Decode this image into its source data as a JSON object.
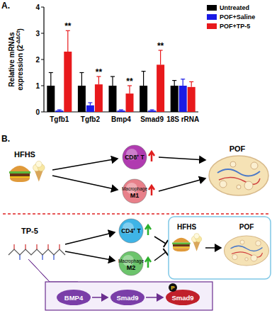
{
  "labels": {
    "a": "A.",
    "b": "B."
  },
  "chart_data": {
    "type": "bar",
    "categories": [
      "Tgfb1",
      "Tgfb2",
      "Bmp4",
      "Smad9",
      "18S rRNA"
    ],
    "series": [
      {
        "name": "Untreated",
        "color": "#000000",
        "values": [
          1.0,
          1.0,
          1.0,
          1.0,
          1.0
        ],
        "errors": [
          0.5,
          0.5,
          0.35,
          0.55,
          0.2
        ]
      },
      {
        "name": "POF+Saline",
        "color": "#1a1ae6",
        "values": [
          0.05,
          0.25,
          0.05,
          0.05,
          1.0
        ],
        "errors": [
          0.03,
          0.1,
          0.03,
          0.03,
          0.25
        ]
      },
      {
        "name": "POF+TP-5",
        "color": "#e8191c",
        "values": [
          2.3,
          1.05,
          0.7,
          1.8,
          0.95
        ],
        "errors": [
          0.8,
          0.3,
          0.3,
          0.55,
          0.2
        ]
      }
    ],
    "ylabel": {
      "lines": [
        "Relative mRNAs",
        "expression (2"
      ],
      "superscript": "-ΔΔCt",
      "suffix": ")"
    },
    "ylim": [
      0,
      4
    ],
    "yticks": [
      0,
      1,
      2,
      3,
      4
    ],
    "legend": "upper right",
    "annotations": [
      {
        "text": "**",
        "category": "Tgfb1",
        "series": "POF+TP-5"
      },
      {
        "text": "**",
        "category": "Tgfb2",
        "series": "POF+TP-5"
      },
      {
        "text": "**",
        "category": "Bmp4",
        "series": "POF+TP-5"
      },
      {
        "text": "**",
        "category": "Smad9",
        "series": "POF+TP-5"
      }
    ]
  },
  "diagram": {
    "upper": {
      "input": "HFHS",
      "cells": [
        {
          "label": "CD8⁺ T",
          "color": "#b03bb0"
        },
        {
          "label": "Macrophage",
          "sub": "M1",
          "color": "#e8808a"
        }
      ],
      "outcome": "POF"
    },
    "lower": {
      "input": "TP-5",
      "cells": [
        {
          "label": "CD4⁺ T",
          "color": "#3fb4e6"
        },
        {
          "label": "Macrophage",
          "sub": "M2",
          "color": "#6cc46c"
        }
      ],
      "box": {
        "input": "HFHS",
        "outcome": "POF"
      },
      "pathway": [
        {
          "label": "BMP4",
          "color": "#7a3ea8"
        },
        {
          "label": "Smad9",
          "color": "#7a3ea8"
        },
        {
          "label": "Smad9",
          "color": "#c0202a",
          "mark": "P"
        }
      ]
    }
  }
}
